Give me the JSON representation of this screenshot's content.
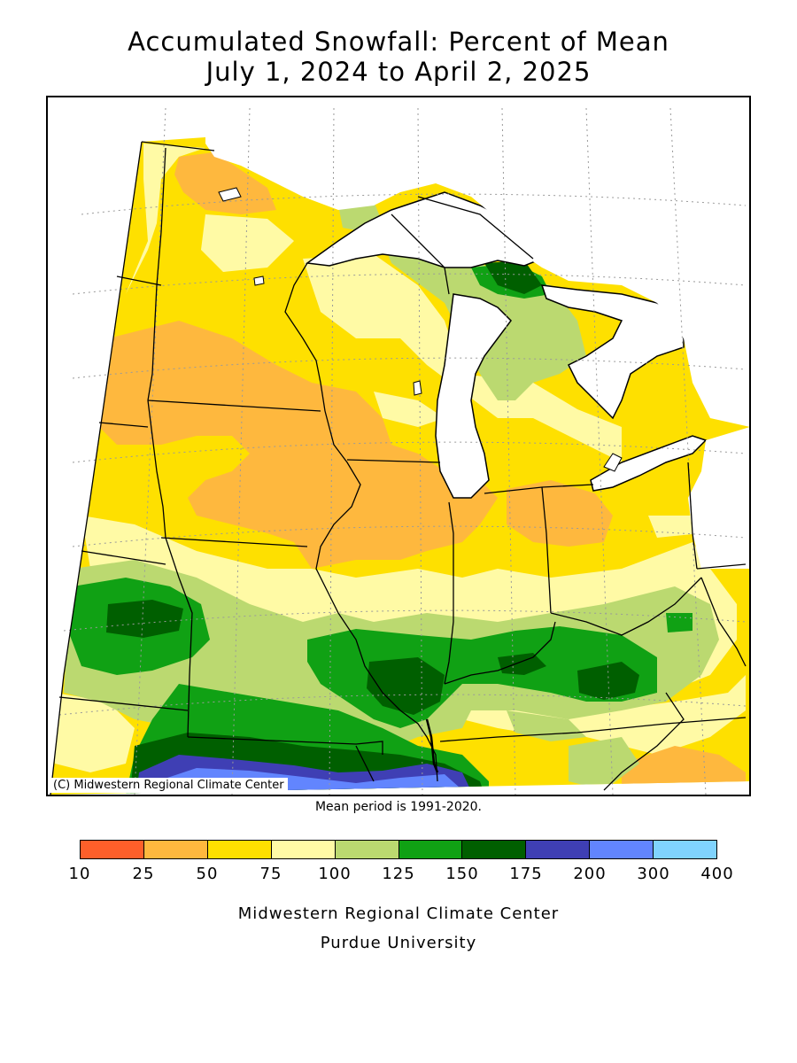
{
  "title": {
    "line1": "Accumulated Snowfall: Percent of Mean",
    "line2": "July 1, 2024 to April 2, 2025"
  },
  "map": {
    "copyright": "(C) Midwestern Regional Climate Center",
    "region": "Midwest United States",
    "colors": {
      "lake": "#ffffff",
      "boundary": "#000000",
      "grid": "#9a9a9a"
    }
  },
  "mean_period": "Mean period is 1991-2020.",
  "legend": {
    "colors": [
      "#fe5f2a",
      "#feb83e",
      "#fee000",
      "#fffaa5",
      "#bbd970",
      "#10a114",
      "#005f00",
      "#3f3fb4",
      "#6285fe",
      "#80d3fe"
    ],
    "labels": [
      "10",
      "25",
      "50",
      "75",
      "100",
      "125",
      "150",
      "175",
      "200",
      "300",
      "400"
    ]
  },
  "footer": {
    "line1": "Midwestern Regional Climate Center",
    "line2": "Purdue University"
  }
}
